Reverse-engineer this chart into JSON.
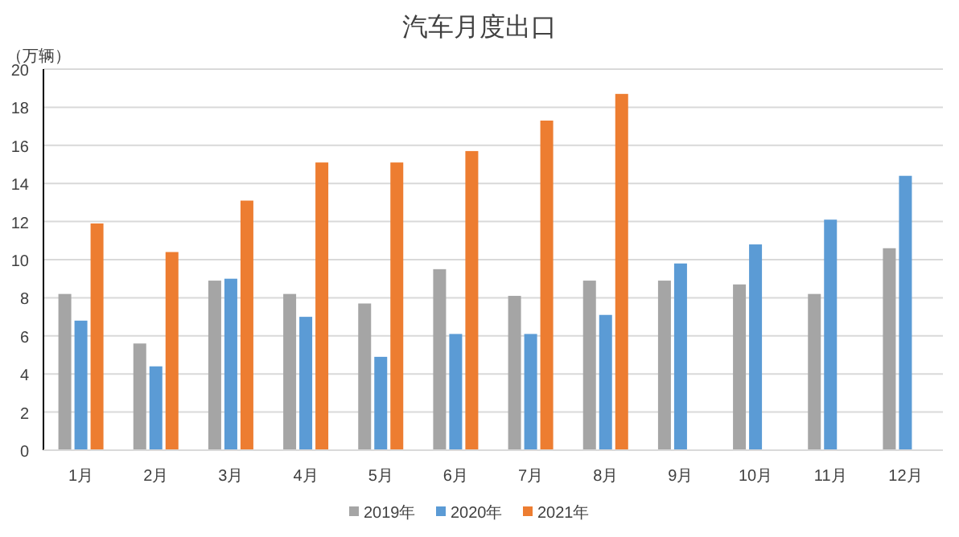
{
  "chart_data": {
    "type": "bar",
    "title": "汽车月度出口",
    "ylabel": "（万辆）",
    "categories": [
      "1月",
      "2月",
      "3月",
      "4月",
      "5月",
      "6月",
      "7月",
      "8月",
      "9月",
      "10月",
      "11月",
      "12月"
    ],
    "series": [
      {
        "name": "2019年",
        "color": "#a5a5a5",
        "values": [
          8.2,
          5.6,
          8.9,
          8.2,
          7.7,
          9.5,
          8.1,
          8.9,
          8.9,
          8.7,
          8.2,
          10.6
        ]
      },
      {
        "name": "2020年",
        "color": "#5b9bd5",
        "values": [
          6.8,
          4.4,
          9.0,
          7.0,
          4.9,
          6.1,
          6.1,
          7.1,
          9.8,
          10.8,
          12.1,
          14.4
        ]
      },
      {
        "name": "2021年",
        "color": "#ed7d31",
        "values": [
          11.9,
          10.4,
          13.1,
          15.1,
          15.1,
          15.7,
          17.3,
          18.7,
          null,
          null,
          null,
          null
        ]
      }
    ],
    "ylim": [
      0,
      20
    ],
    "yticks": [
      0,
      2,
      4,
      6,
      8,
      10,
      12,
      14,
      16,
      18,
      20
    ],
    "grid": "y",
    "legend": "bottom"
  }
}
